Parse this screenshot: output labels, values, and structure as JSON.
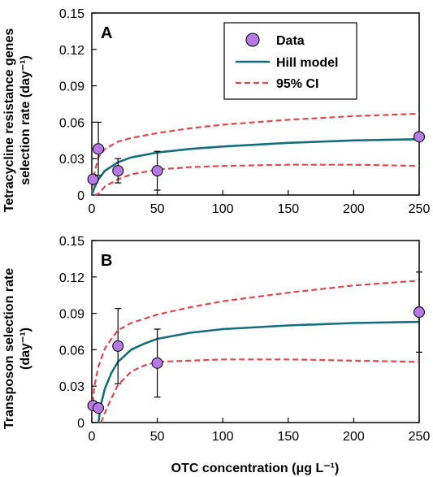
{
  "colors": {
    "data_marker": "#b57ae6",
    "hill_model": "#166e7c",
    "ci": "#e0474c",
    "axis": "#000000"
  },
  "xlabel": "OTC concentration (μg L⁻¹)",
  "legend": {
    "data": "Data",
    "hill": "Hill model",
    "ci": "95% CI"
  },
  "panels": [
    {
      "letter": "A",
      "ylabel_line1": "Tetracycline resistance genes",
      "ylabel_line2": "selection rate (day⁻¹)"
    },
    {
      "letter": "B",
      "ylabel_line1": "Transposon selection rate",
      "ylabel_line2": "(day⁻¹)"
    }
  ],
  "chart_data": [
    {
      "type": "scatter",
      "panel": "A",
      "xlim": [
        0,
        250
      ],
      "ylim": [
        0,
        0.15
      ],
      "xticks": [
        "0",
        "50",
        "100",
        "150",
        "200",
        "250"
      ],
      "yticks": [
        "0",
        "0.03",
        "0.06",
        "0.09",
        "0.12",
        "0.15"
      ],
      "legend_position": "top-right",
      "points": [
        {
          "x": 1,
          "y": 0.013,
          "err": 0
        },
        {
          "x": 5,
          "y": 0.038,
          "err": 0.022
        },
        {
          "x": 20,
          "y": 0.02,
          "err": 0.01
        },
        {
          "x": 50,
          "y": 0.02,
          "err": 0.016
        },
        {
          "x": 250,
          "y": 0.048,
          "err": 0
        }
      ],
      "hill": {
        "x": [
          0,
          2,
          5,
          10,
          20,
          30,
          50,
          75,
          100,
          150,
          200,
          250
        ],
        "y": [
          0,
          0.006,
          0.013,
          0.02,
          0.027,
          0.031,
          0.035,
          0.038,
          0.04,
          0.043,
          0.045,
          0.046
        ]
      },
      "ci_upper": {
        "x": [
          0,
          2,
          5,
          10,
          20,
          30,
          50,
          75,
          100,
          150,
          200,
          250
        ],
        "y": [
          0,
          0.018,
          0.031,
          0.038,
          0.044,
          0.047,
          0.051,
          0.055,
          0.058,
          0.062,
          0.065,
          0.067
        ]
      },
      "ci_lower": {
        "x": [
          2,
          5,
          10,
          20,
          30,
          50,
          75,
          100,
          150,
          200,
          250
        ],
        "y": [
          0,
          0.001,
          0.007,
          0.013,
          0.017,
          0.021,
          0.023,
          0.024,
          0.025,
          0.025,
          0.024
        ]
      }
    },
    {
      "type": "scatter",
      "panel": "B",
      "xlim": [
        0,
        250
      ],
      "ylim": [
        0,
        0.15
      ],
      "xticks": [
        "0",
        "50",
        "100",
        "150",
        "200",
        "250"
      ],
      "yticks": [
        "0",
        "0.03",
        "0.06",
        "0.09",
        "0.12",
        "0.15"
      ],
      "points": [
        {
          "x": 1,
          "y": 0.014,
          "err": 0
        },
        {
          "x": 5,
          "y": 0.012,
          "err": 0
        },
        {
          "x": 20,
          "y": 0.063,
          "err": 0.031
        },
        {
          "x": 50,
          "y": 0.049,
          "err": 0.028
        },
        {
          "x": 250,
          "y": 0.091,
          "err": 0.033
        }
      ],
      "hill": {
        "x": [
          5,
          7,
          10,
          15,
          20,
          30,
          40,
          50,
          75,
          100,
          150,
          200,
          250
        ],
        "y": [
          0,
          0.015,
          0.028,
          0.041,
          0.05,
          0.06,
          0.065,
          0.069,
          0.074,
          0.077,
          0.08,
          0.082,
          0.083
        ]
      },
      "ci_upper": {
        "x": [
          0,
          2,
          5,
          10,
          15,
          20,
          30,
          50,
          75,
          100,
          150,
          200,
          250
        ],
        "y": [
          0.009,
          0.03,
          0.046,
          0.061,
          0.069,
          0.076,
          0.082,
          0.089,
          0.095,
          0.1,
          0.107,
          0.113,
          0.117
        ]
      },
      "ci_lower": {
        "x": [
          7,
          10,
          15,
          20,
          30,
          40,
          50,
          75,
          100,
          150,
          200,
          250
        ],
        "y": [
          0,
          0.008,
          0.02,
          0.031,
          0.042,
          0.047,
          0.05,
          0.051,
          0.052,
          0.052,
          0.051,
          0.05
        ]
      }
    }
  ]
}
